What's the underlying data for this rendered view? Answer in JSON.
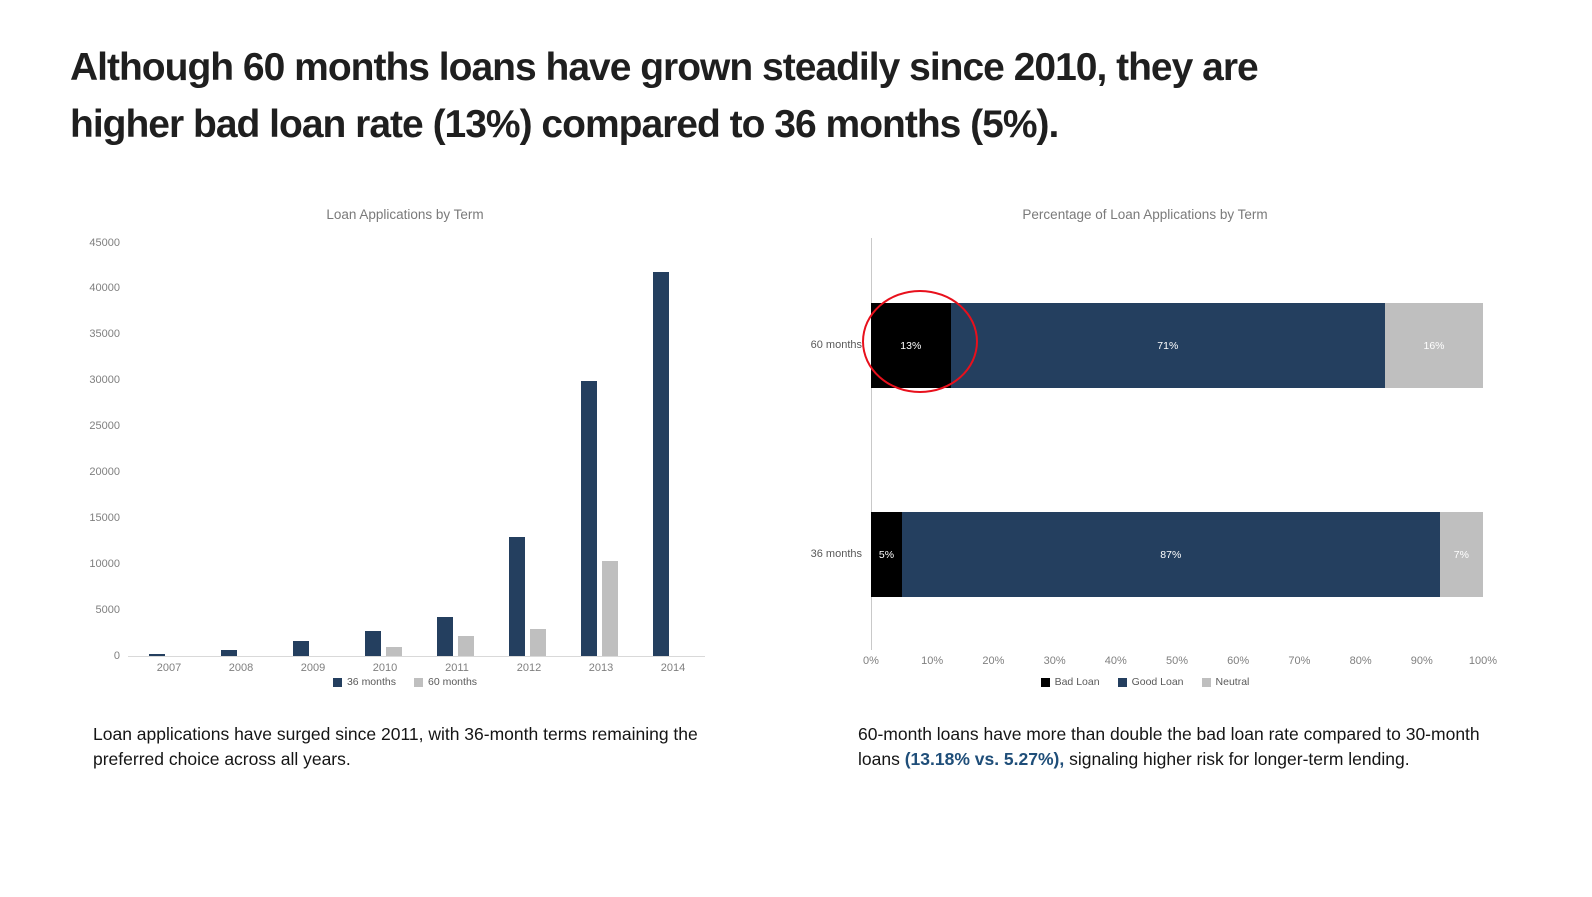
{
  "title": {
    "line1": "Although 60 months loans have grown steadily since 2010, they are",
    "line2": "higher bad loan rate (13%) compared to 36 months (5%)."
  },
  "chart_data": [
    {
      "type": "bar",
      "title": "Loan Applications by Term",
      "categories": [
        "2007",
        "2008",
        "2009",
        "2010",
        "2011",
        "2012",
        "2013",
        "2014"
      ],
      "series": [
        {
          "name": "36 months",
          "color": "#243f5f",
          "values": [
            200,
            700,
            1600,
            2700,
            4200,
            13000,
            30000,
            41800
          ]
        },
        {
          "name": "60 months",
          "color": "#bfbfbf",
          "values": [
            0,
            0,
            0,
            1000,
            2200,
            2900,
            10400,
            0
          ]
        }
      ],
      "xlabel": "",
      "ylabel": "",
      "ylim": [
        0,
        45000
      ],
      "yticks": [
        "0",
        "5000",
        "10000",
        "15000",
        "20000",
        "25000",
        "30000",
        "35000",
        "40000",
        "45000"
      ],
      "grid": false,
      "legend_position": "bottom"
    },
    {
      "type": "bar",
      "orientation": "horizontal",
      "stacked": true,
      "title": "Percentage of Loan Applications by Term",
      "categories": [
        "60 months",
        "36 months"
      ],
      "series": [
        {
          "name": "Bad Loan",
          "color": "#000000",
          "values": [
            13,
            5
          ],
          "labels": [
            "13%",
            "5%"
          ]
        },
        {
          "name": "Good Loan",
          "color": "#243f5f",
          "values": [
            71,
            87
          ],
          "labels": [
            "71%",
            "87%"
          ]
        },
        {
          "name": "Neutral",
          "color": "#bfbfbf",
          "values": [
            16,
            7
          ],
          "labels": [
            "16%",
            "7%"
          ]
        }
      ],
      "xlabel": "",
      "ylabel": "",
      "xlim": [
        0,
        100
      ],
      "xticks": [
        "0%",
        "10%",
        "20%",
        "30%",
        "40%",
        "50%",
        "60%",
        "70%",
        "80%",
        "90%",
        "100%"
      ],
      "grid": false,
      "legend_position": "bottom",
      "annotation": {
        "shape": "ellipse",
        "color": "#e8101c",
        "target": "60 months Bad Loan segment"
      }
    }
  ],
  "captions": {
    "left": "Loan applications have surged since 2011, with 36-month terms remaining the preferred choice across all years.",
    "right_part1": "60-month loans have more than double the bad loan rate compared to 30-month loans ",
    "right_highlight": "(13.18% vs. 5.27%),",
    "right_part2": " signaling higher risk for longer-term lending."
  }
}
